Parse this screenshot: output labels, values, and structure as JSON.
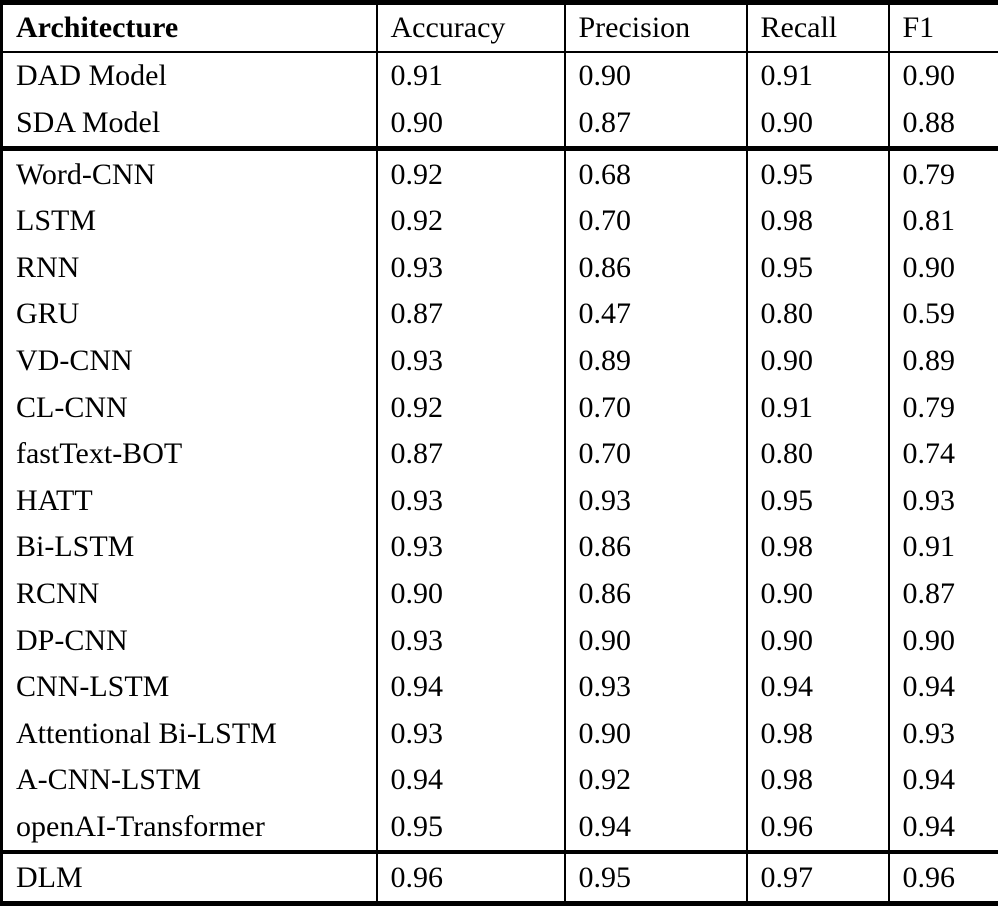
{
  "header": {
    "architecture": "Architecture",
    "accuracy": "Accuracy",
    "precision": "Precision",
    "recall": "Recall",
    "f1": "F1"
  },
  "rows": [
    {
      "architecture": "DAD Model",
      "accuracy": "0.91",
      "precision": "0.90",
      "recall": "0.91",
      "f1": "0.90"
    },
    {
      "architecture": "SDA Model",
      "accuracy": "0.90",
      "precision": "0.87",
      "recall": "0.90",
      "f1": "0.88"
    },
    {
      "architecture": "Word-CNN",
      "accuracy": "0.92",
      "precision": "0.68",
      "recall": "0.95",
      "f1": "0.79"
    },
    {
      "architecture": "LSTM",
      "accuracy": "0.92",
      "precision": "0.70",
      "recall": "0.98",
      "f1": "0.81"
    },
    {
      "architecture": "RNN",
      "accuracy": "0.93",
      "precision": "0.86",
      "recall": "0.95",
      "f1": "0.90"
    },
    {
      "architecture": "GRU",
      "accuracy": "0.87",
      "precision": "0.47",
      "recall": "0.80",
      "f1": "0.59"
    },
    {
      "architecture": "VD-CNN",
      "accuracy": "0.93",
      "precision": "0.89",
      "recall": "0.90",
      "f1": "0.89"
    },
    {
      "architecture": "CL-CNN",
      "accuracy": "0.92",
      "precision": "0.70",
      "recall": "0.91",
      "f1": "0.79"
    },
    {
      "architecture": "fastText-BOT",
      "accuracy": "0.87",
      "precision": "0.70",
      "recall": "0.80",
      "f1": "0.74"
    },
    {
      "architecture": "HATT",
      "accuracy": "0.93",
      "precision": "0.93",
      "recall": "0.95",
      "f1": "0.93"
    },
    {
      "architecture": "Bi-LSTM",
      "accuracy": "0.93",
      "precision": "0.86",
      "recall": "0.98",
      "f1": "0.91"
    },
    {
      "architecture": "RCNN",
      "accuracy": "0.90",
      "precision": "0.86",
      "recall": "0.90",
      "f1": "0.87"
    },
    {
      "architecture": "DP-CNN",
      "accuracy": "0.93",
      "precision": "0.90",
      "recall": "0.90",
      "f1": "0.90"
    },
    {
      "architecture": "CNN-LSTM",
      "accuracy": "0.94",
      "precision": "0.93",
      "recall": "0.94",
      "f1": "0.94"
    },
    {
      "architecture": "Attentional Bi-LSTM",
      "accuracy": "0.93",
      "precision": "0.90",
      "recall": "0.98",
      "f1": "0.93"
    },
    {
      "architecture": "A-CNN-LSTM",
      "accuracy": "0.94",
      "precision": "0.92",
      "recall": "0.98",
      "f1": "0.94"
    },
    {
      "architecture": "openAI-Transformer",
      "accuracy": "0.95",
      "precision": "0.94",
      "recall": "0.96",
      "f1": "0.94"
    },
    {
      "architecture": "DLM",
      "accuracy": "0.96",
      "precision": "0.95",
      "recall": "0.97",
      "f1": "0.96"
    }
  ]
}
